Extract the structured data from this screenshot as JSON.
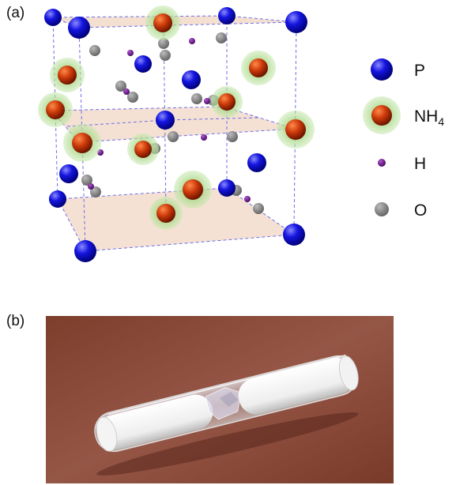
{
  "panels": {
    "a": {
      "label": "(a)"
    },
    "b": {
      "label": "(b)"
    }
  },
  "legend": [
    {
      "symbol": "phosphorus-atom",
      "text": "P",
      "sub": "",
      "color": "#1a1aee"
    },
    {
      "symbol": "ammonium-ion",
      "text": "NH",
      "sub": "4",
      "color": "#cc3311"
    },
    {
      "symbol": "hydrogen-atom",
      "text": "H",
      "sub": "",
      "color": "#6a1b8a"
    },
    {
      "symbol": "oxygen-atom",
      "text": "O",
      "sub": "",
      "color": "#888888"
    }
  ],
  "colors": {
    "plane": "#f3dccb",
    "unit_cell_lines": "#7a7ae6",
    "halo": "#a9d98c",
    "background_photo": "#8a4a38"
  }
}
